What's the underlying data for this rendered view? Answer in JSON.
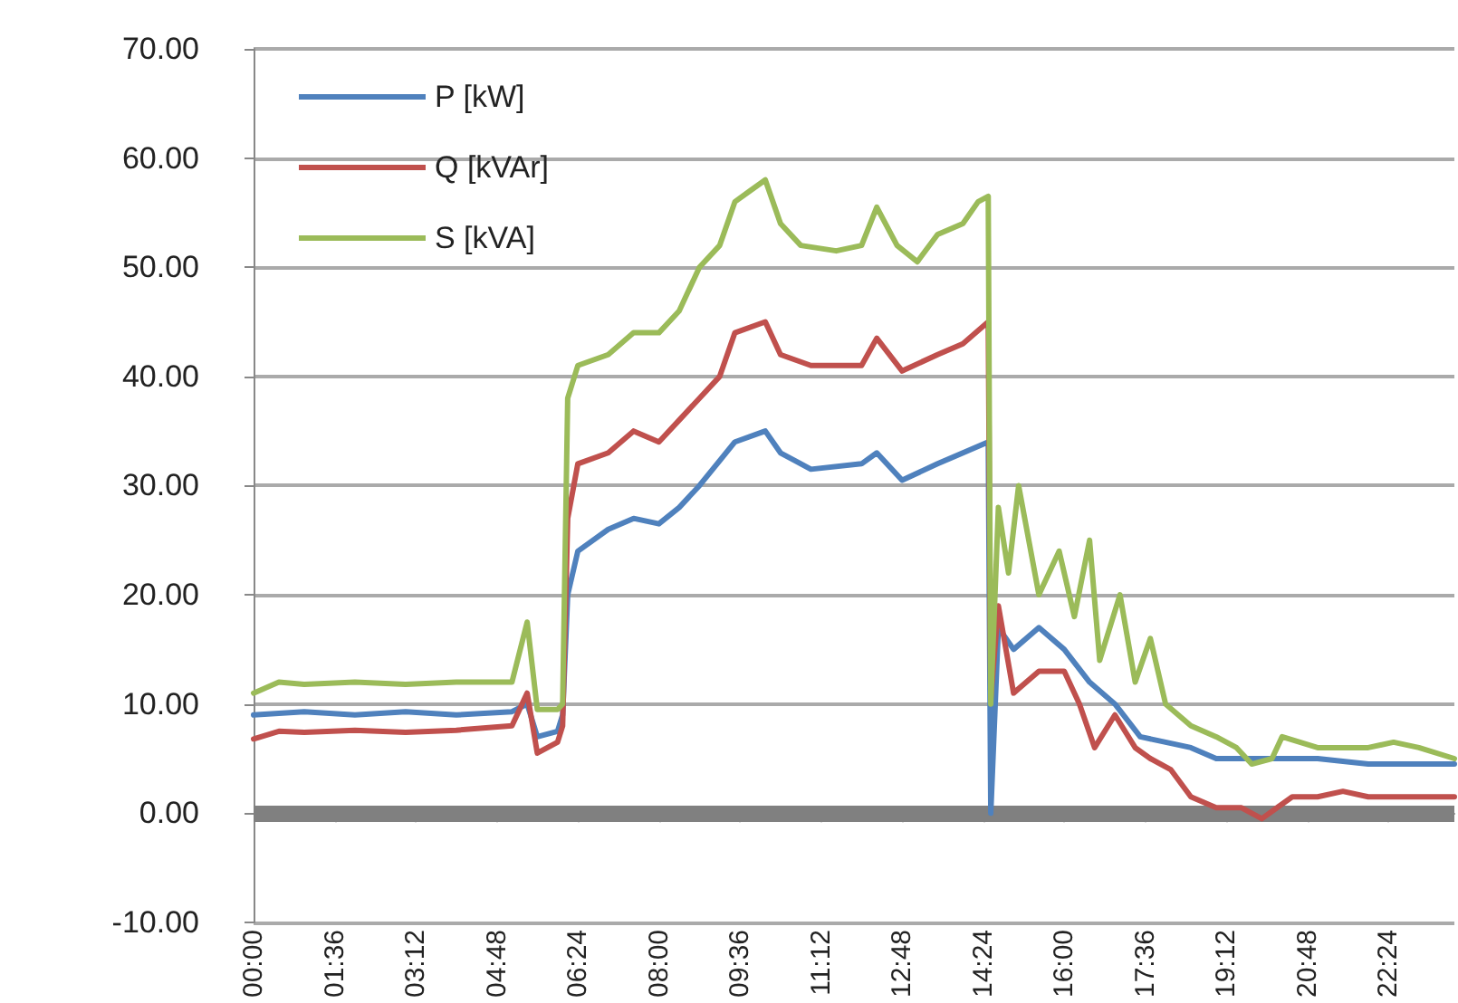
{
  "chart_data": {
    "type": "line",
    "xlim": [
      0,
      23.7
    ],
    "xticks": [
      {
        "value": 0,
        "label": "00:00"
      },
      {
        "value": 1.6,
        "label": "01:36"
      },
      {
        "value": 3.2,
        "label": "03:12"
      },
      {
        "value": 4.8,
        "label": "04:48"
      },
      {
        "value": 6.4,
        "label": "06:24"
      },
      {
        "value": 8,
        "label": "08:00"
      },
      {
        "value": 9.6,
        "label": "09:36"
      },
      {
        "value": 11.2,
        "label": "11:12"
      },
      {
        "value": 12.8,
        "label": "12:48"
      },
      {
        "value": 14.4,
        "label": "14:24"
      },
      {
        "value": 16,
        "label": "16:00"
      },
      {
        "value": 17.6,
        "label": "17:36"
      },
      {
        "value": 19.2,
        "label": "19:12"
      },
      {
        "value": 20.8,
        "label": "20:48"
      },
      {
        "value": 22.4,
        "label": "22:24"
      }
    ],
    "ylim": [
      -10,
      70
    ],
    "yticks": [
      {
        "value": -10,
        "label": "-10.00"
      },
      {
        "value": 0,
        "label": "0.00"
      },
      {
        "value": 10,
        "label": "10.00"
      },
      {
        "value": 20,
        "label": "20.00"
      },
      {
        "value": 30,
        "label": "30.00"
      },
      {
        "value": 40,
        "label": "40.00"
      },
      {
        "value": 50,
        "label": "50.00"
      },
      {
        "value": 60,
        "label": "60.00"
      },
      {
        "value": 70,
        "label": "70.00"
      }
    ],
    "grid": "y",
    "legend": "top left",
    "marker": "none",
    "line_style": "solid",
    "ref_lines": [
      {
        "axis": "y",
        "value": 0,
        "label": null,
        "color": "#808080"
      }
    ],
    "series": [
      {
        "name": "P [kW]",
        "color": "#4f81bd",
        "x": [
          0,
          1,
          2,
          3,
          4,
          5.1,
          5.4,
          5.6,
          6,
          6.1,
          6.2,
          6.4,
          7,
          7.5,
          8,
          8.4,
          8.8,
          9.5,
          10.1,
          10.4,
          11,
          12,
          12.3,
          12.8,
          13.5,
          14.5,
          14.55,
          14.7,
          15,
          15.5,
          16,
          16.5,
          17,
          17.5,
          18,
          18.5,
          19,
          19.5,
          20,
          20.3,
          21,
          22,
          23.7
        ],
        "values": [
          9,
          9.3,
          9,
          9.3,
          9,
          9.3,
          10,
          7,
          7.5,
          9,
          20,
          24,
          26,
          27,
          26.5,
          28,
          30,
          34,
          35,
          33,
          31.5,
          32,
          33,
          30.5,
          32,
          34,
          0,
          17,
          15,
          17,
          15,
          12,
          10,
          7,
          6.5,
          6,
          5,
          5,
          5,
          5,
          5,
          4.5,
          4.5
        ]
      },
      {
        "name": "Q [kVAr]",
        "color": "#c0504d",
        "x": [
          0,
          0.5,
          1,
          2,
          3,
          4,
          5.1,
          5.4,
          5.6,
          6,
          6.1,
          6.2,
          6.4,
          7,
          7.5,
          8,
          8.4,
          8.8,
          9.2,
          9.5,
          10.1,
          10.4,
          11,
          12,
          12.3,
          12.8,
          13.5,
          14,
          14.5,
          14.55,
          14.7,
          15,
          15.5,
          16,
          16.3,
          16.6,
          17,
          17.4,
          17.7,
          18.1,
          18.5,
          19,
          19.5,
          19.9,
          20.2,
          20.5,
          21,
          21.5,
          22,
          23,
          23.7
        ],
        "values": [
          6.8,
          7.5,
          7.4,
          7.6,
          7.4,
          7.6,
          8,
          11,
          5.5,
          6.5,
          8,
          27,
          32,
          33,
          35,
          34,
          36,
          38,
          40,
          44,
          45,
          42,
          41,
          41,
          43.5,
          40.5,
          42,
          43,
          45,
          10.5,
          19,
          11,
          13,
          13,
          10,
          6,
          9,
          6,
          5,
          4,
          1.5,
          0.5,
          0.5,
          -0.5,
          0.5,
          1.5,
          1.5,
          2,
          1.5,
          1.5,
          1.5
        ]
      },
      {
        "name": "S [kVA]",
        "color": "#9bbb59",
        "x": [
          0,
          0.5,
          1,
          2,
          3,
          4,
          5.1,
          5.4,
          5.6,
          6,
          6.1,
          6.2,
          6.4,
          7,
          7.5,
          8,
          8.4,
          8.8,
          9.2,
          9.5,
          9.8,
          10.1,
          10.4,
          10.8,
          11.5,
          12,
          12.3,
          12.7,
          13.1,
          13.5,
          14,
          14.3,
          14.5,
          14.55,
          14.7,
          14.9,
          15.1,
          15.5,
          15.9,
          16.2,
          16.5,
          16.7,
          17.1,
          17.4,
          17.7,
          18,
          18.5,
          19,
          19.4,
          19.7,
          20.1,
          20.3,
          21,
          22,
          22.5,
          23,
          23.7
        ],
        "values": [
          11,
          12,
          11.8,
          12,
          11.8,
          12,
          12,
          17.5,
          9.5,
          9.5,
          10,
          38,
          41,
          42,
          44,
          44,
          46,
          50,
          52,
          56,
          57,
          58,
          54,
          52,
          51.5,
          52,
          55.5,
          52,
          50.5,
          53,
          54,
          56,
          56.5,
          10,
          28,
          22,
          30,
          20,
          24,
          18,
          25,
          14,
          20,
          12,
          16,
          10,
          8,
          7,
          6,
          4.5,
          5,
          7,
          6,
          6,
          6.5,
          6,
          5
        ]
      }
    ]
  }
}
